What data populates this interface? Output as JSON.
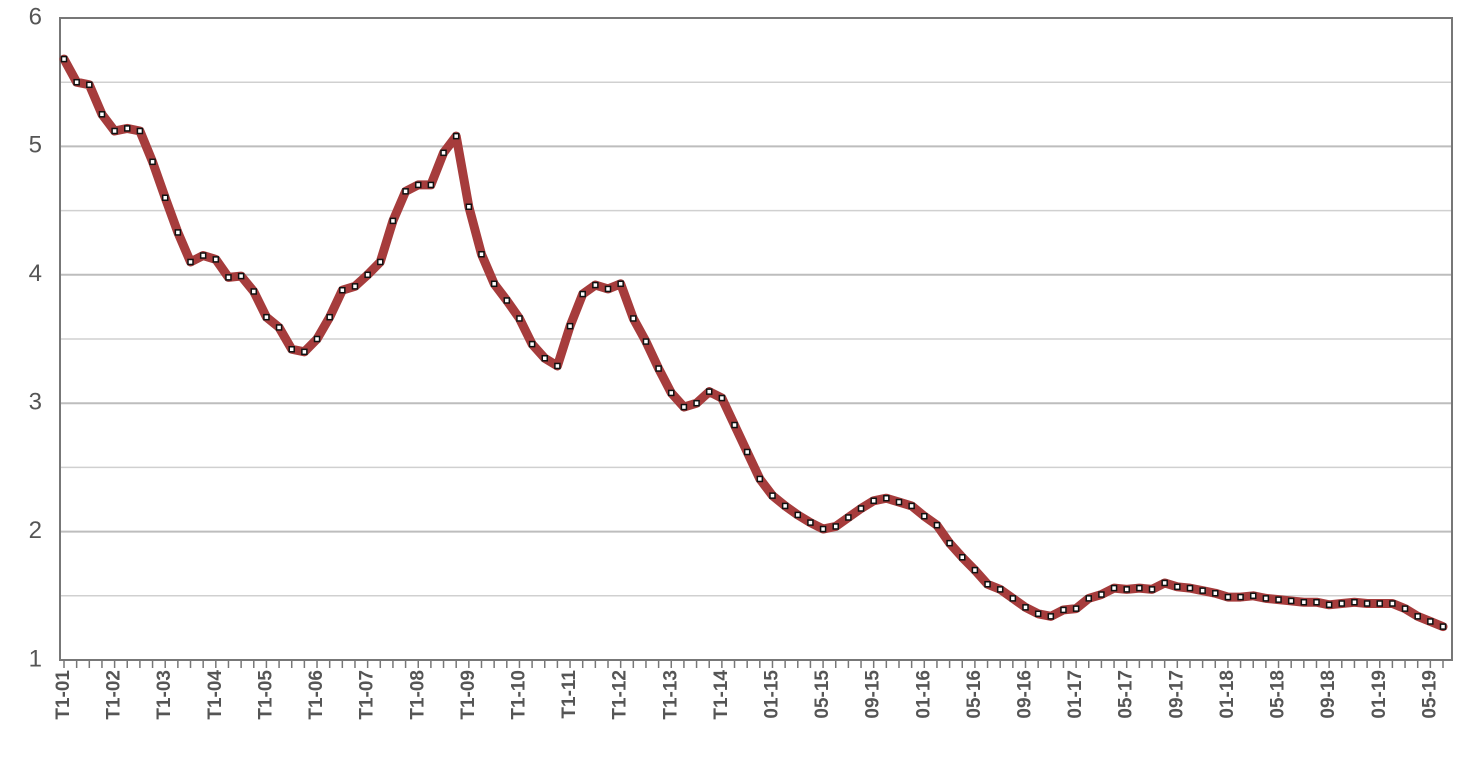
{
  "chart_data": {
    "type": "line",
    "categories": [
      "T1-01",
      null,
      null,
      null,
      "T1-02",
      null,
      null,
      null,
      "T1-03",
      null,
      null,
      null,
      "T1-04",
      null,
      null,
      null,
      "T1-05",
      null,
      null,
      null,
      "T1-06",
      null,
      null,
      null,
      "T1-07",
      null,
      null,
      null,
      "T1-08",
      null,
      null,
      null,
      "T1-09",
      null,
      null,
      null,
      "T1-10",
      null,
      null,
      null,
      "T1-11",
      null,
      null,
      null,
      "T1-12",
      null,
      null,
      null,
      "T1-13",
      null,
      null,
      null,
      "T1-14",
      null,
      null,
      null,
      "01-15",
      null,
      null,
      null,
      "05-15",
      null,
      null,
      null,
      "09-15",
      null,
      null,
      null,
      "01-16",
      null,
      null,
      null,
      "05-16",
      null,
      null,
      null,
      "09-16",
      null,
      null,
      null,
      "01-17",
      null,
      null,
      null,
      "05-17",
      null,
      null,
      null,
      "09-17",
      null,
      null,
      null,
      "01-18",
      null,
      null,
      null,
      "05-18",
      null,
      null,
      null,
      "09-18",
      null,
      null,
      null,
      "01-19",
      null,
      null,
      null,
      "05-19",
      null
    ],
    "values": [
      5.68,
      5.5,
      5.48,
      5.25,
      5.12,
      5.14,
      5.12,
      4.88,
      4.6,
      4.33,
      4.1,
      4.15,
      4.12,
      3.98,
      3.99,
      3.87,
      3.67,
      3.59,
      3.42,
      3.4,
      3.5,
      3.67,
      3.88,
      3.91,
      4.0,
      4.1,
      4.42,
      4.65,
      4.7,
      4.7,
      4.95,
      5.08,
      4.53,
      4.16,
      3.93,
      3.8,
      3.66,
      3.46,
      3.35,
      3.29,
      3.6,
      3.85,
      3.92,
      3.89,
      3.93,
      3.66,
      3.48,
      3.27,
      3.08,
      2.97,
      3.0,
      3.09,
      3.04,
      2.83,
      2.62,
      2.41,
      2.28,
      2.2,
      2.13,
      2.07,
      2.02,
      2.04,
      2.11,
      2.18,
      2.24,
      2.26,
      2.23,
      2.2,
      2.12,
      2.05,
      1.91,
      1.8,
      1.7,
      1.59,
      1.55,
      1.48,
      1.41,
      1.36,
      1.34,
      1.39,
      1.4,
      1.48,
      1.51,
      1.56,
      1.55,
      1.56,
      1.55,
      1.6,
      1.57,
      1.56,
      1.54,
      1.52,
      1.49,
      1.49,
      1.5,
      1.48,
      1.47,
      1.46,
      1.45,
      1.45,
      1.43,
      1.44,
      1.45,
      1.44,
      1.44,
      1.44,
      1.4,
      1.34,
      1.3,
      1.26
    ],
    "color": "#a63c3c",
    "marker_color": "#111111",
    "ylim": [
      1,
      6
    ],
    "yticks": [
      1,
      2,
      3,
      4,
      5,
      6
    ],
    "minor_yticks": [
      1.5,
      2.5,
      3.5,
      4.5,
      5.5
    ],
    "grid": true
  }
}
